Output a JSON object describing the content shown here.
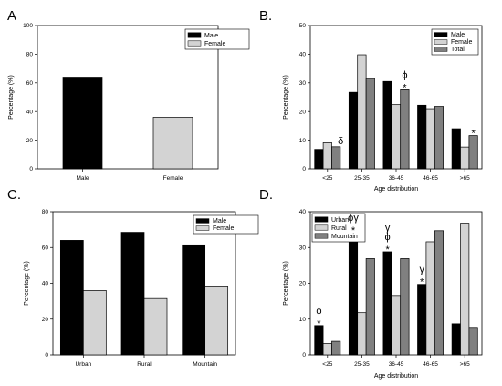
{
  "colors": {
    "c1": "#000000",
    "c2": "#d3d3d3",
    "c3": "#808080"
  },
  "chart_data": [
    {
      "id": "A",
      "type": "bar",
      "panel_label": "A",
      "categories": [
        "Male",
        "Female"
      ],
      "series": [
        {
          "name": "Male",
          "values": [
            64,
            null
          ]
        },
        {
          "name": "Female",
          "values": [
            null,
            36
          ]
        }
      ],
      "ylabel": "Percentage (%)",
      "xlabel": "",
      "ylim": [
        0,
        100
      ],
      "yticks": [
        0,
        20,
        40,
        60,
        80,
        100
      ],
      "legend": "top-right",
      "annotations": []
    },
    {
      "id": "B",
      "type": "bar",
      "panel_label": "B.",
      "categories": [
        "<25",
        "25-35",
        "36-45",
        "46-65",
        ">65"
      ],
      "series": [
        {
          "name": "Male",
          "values": [
            6.8,
            26.7,
            30.5,
            22.2,
            14.0
          ]
        },
        {
          "name": "Female",
          "values": [
            9.1,
            39.8,
            22.4,
            21.0,
            7.6
          ]
        },
        {
          "name": "Total",
          "values": [
            7.7,
            31.5,
            27.6,
            21.8,
            11.6
          ]
        }
      ],
      "ylabel": "Percentage (%)",
      "xlabel": "Age distribution",
      "ylim": [
        0,
        50
      ],
      "yticks": [
        0,
        10,
        20,
        30,
        40,
        50
      ],
      "legend": "top-right",
      "annotations": [
        {
          "category": 0,
          "series": 2,
          "lines": [
            "δ"
          ]
        },
        {
          "category": 2,
          "series": 2,
          "lines": [
            "ϕ",
            "*"
          ]
        },
        {
          "category": 4,
          "series": 2,
          "lines": [
            "*"
          ]
        }
      ]
    },
    {
      "id": "C",
      "type": "bar",
      "panel_label": "C.",
      "categories": [
        "Urban",
        "Rural",
        "Mountain"
      ],
      "series": [
        {
          "name": "Male",
          "values": [
            64,
            68.5,
            61.5
          ]
        },
        {
          "name": "Female",
          "values": [
            36,
            31.5,
            38.5
          ]
        }
      ],
      "ylabel": "Percentage (%)",
      "xlabel": "",
      "ylim": [
        0,
        80
      ],
      "yticks": [
        0,
        20,
        40,
        60,
        80
      ],
      "legend": "top-right",
      "annotations": []
    },
    {
      "id": "D",
      "type": "bar",
      "panel_label": "D.",
      "categories": [
        "<25",
        "25-35",
        "36-45",
        "46-65",
        ">65"
      ],
      "series": [
        {
          "name": "Urban",
          "values": [
            8.2,
            34.2,
            28.8,
            19.7,
            8.7
          ]
        },
        {
          "name": "Rural",
          "values": [
            3.2,
            11.8,
            16.6,
            31.6,
            36.8
          ]
        },
        {
          "name": "Mountain",
          "values": [
            3.8,
            26.9,
            26.9,
            34.7,
            7.7
          ]
        }
      ],
      "ylabel": "Percentage (%)",
      "xlabel": "Age distribution",
      "ylim": [
        0,
        40
      ],
      "yticks": [
        0,
        10,
        20,
        30,
        40
      ],
      "legend": "top-left",
      "annotations": [
        {
          "category": 0,
          "series": 0,
          "lines": [
            "ϕ",
            "*"
          ]
        },
        {
          "category": 1,
          "series": 0,
          "lines": [
            "ϕγ",
            "*"
          ]
        },
        {
          "category": 2,
          "series": 0,
          "lines": [
            "γ",
            "ϕ",
            "*"
          ]
        },
        {
          "category": 3,
          "series": 0,
          "lines": [
            "γ",
            "*"
          ]
        }
      ]
    }
  ]
}
